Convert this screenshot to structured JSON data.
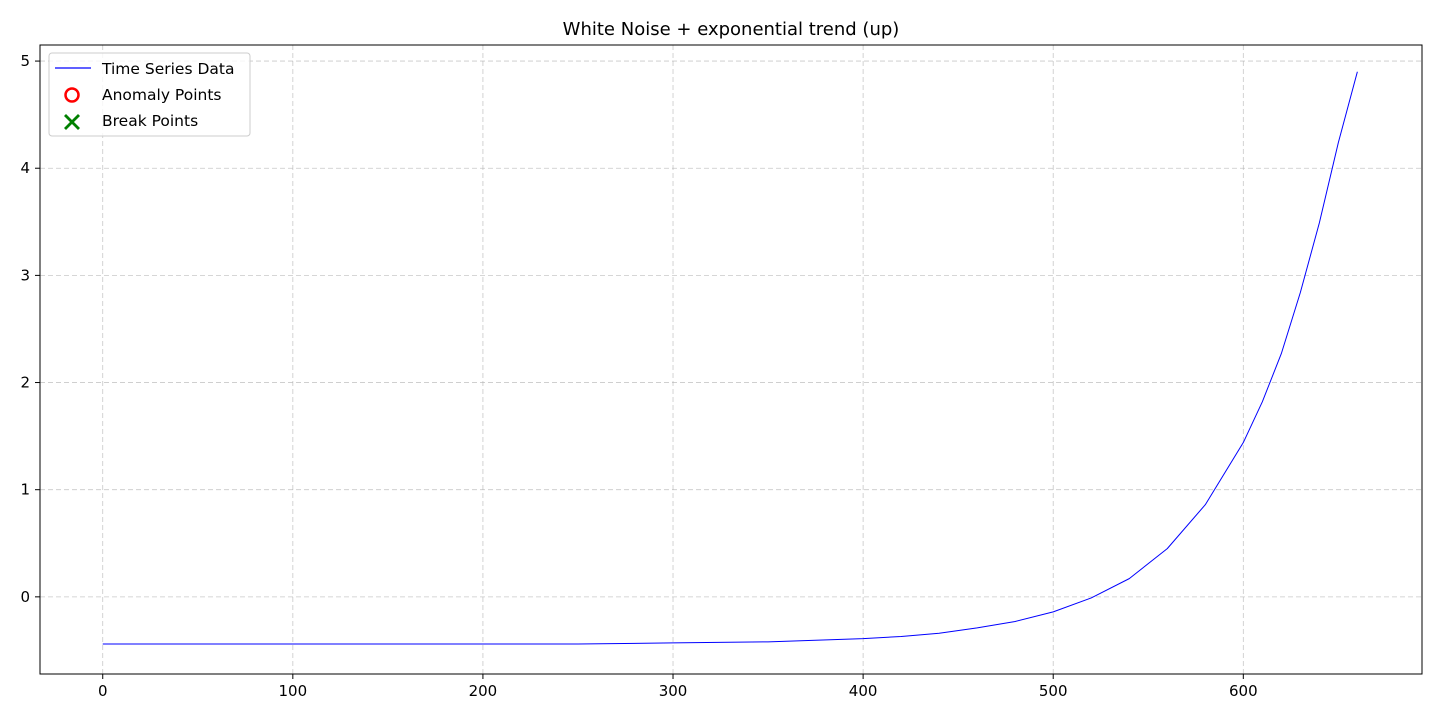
{
  "chart_data": {
    "type": "line",
    "title": "White Noise + exponential trend (up)",
    "xlabel": "",
    "ylabel": "",
    "xlim": [
      -33,
      694
    ],
    "ylim": [
      -0.72,
      5.15
    ],
    "x_ticks": [
      0,
      100,
      200,
      300,
      400,
      500,
      600
    ],
    "y_ticks": [
      0,
      1,
      2,
      3,
      4,
      5
    ],
    "grid": true,
    "grid_style": "dashed",
    "legend_position": "top-left",
    "legend": [
      {
        "label": "Time Series Data",
        "marker": "line",
        "color": "#0000ff"
      },
      {
        "label": "Anomaly Points",
        "marker": "circle",
        "color": "#ff0000"
      },
      {
        "label": "Break Points",
        "marker": "x",
        "color": "#008000"
      }
    ],
    "series": [
      {
        "name": "Time Series Data",
        "color": "#0000ff",
        "x": [
          0,
          50,
          100,
          150,
          200,
          250,
          300,
          350,
          400,
          420,
          440,
          460,
          480,
          500,
          520,
          540,
          560,
          580,
          600,
          610,
          620,
          630,
          640,
          650,
          660
        ],
        "y": [
          -0.44,
          -0.44,
          -0.44,
          -0.44,
          -0.44,
          -0.44,
          -0.43,
          -0.42,
          -0.39,
          -0.37,
          -0.34,
          -0.29,
          -0.23,
          -0.14,
          -0.01,
          0.17,
          0.45,
          0.86,
          1.44,
          1.82,
          2.27,
          2.84,
          3.49,
          4.24,
          4.9
        ]
      }
    ],
    "anomaly_points": [],
    "break_points": []
  }
}
